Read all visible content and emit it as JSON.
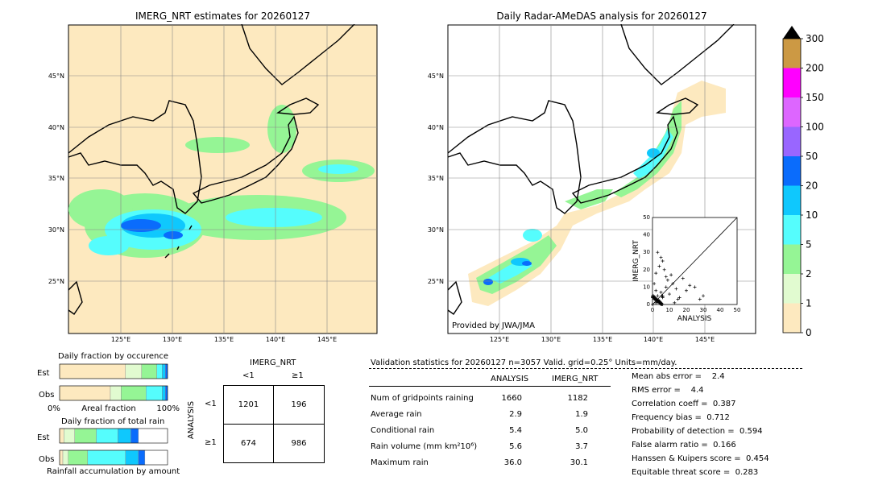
{
  "left_map": {
    "title": "IMERG_NRT estimates for 20260127",
    "lat_labels": [
      "45°N",
      "40°N",
      "35°N",
      "30°N",
      "25°N"
    ],
    "lon_labels": [
      "125°E",
      "130°E",
      "135°E",
      "140°E",
      "145°E"
    ]
  },
  "right_map": {
    "title": "Daily Radar-AMeDAS analysis for 20260127",
    "lat_labels": [
      "45°N",
      "40°N",
      "35°N",
      "30°N",
      "25°N"
    ],
    "lon_labels": [
      "125°E",
      "130°E",
      "135°E",
      "140°E",
      "145°E"
    ],
    "credit": "Provided by JWA/JMA"
  },
  "colorbar": {
    "labels": [
      "0",
      "1",
      "2",
      "5",
      "10",
      "20",
      "50",
      "100",
      "150",
      "200",
      "300"
    ],
    "colors": [
      "#fde9bf",
      "#e1fbd0",
      "#95f595",
      "#55fdfd",
      "#0fc8fd",
      "#0a6cfc",
      "#9966ff",
      "#dd66ff",
      "#ff00ff",
      "#cc9944",
      "#000000"
    ]
  },
  "scatter": {
    "xlabel": "ANALYSIS",
    "ylabel": "IMERG_NRT",
    "ticks": [
      "0",
      "10",
      "20",
      "30",
      "40",
      "50"
    ]
  },
  "occurrence": {
    "title": "Daily fraction by occurence",
    "rows": [
      "Est",
      "Obs"
    ],
    "axis_left": "0%",
    "axis_mid": "Areal fraction",
    "axis_right": "100%"
  },
  "total_rain": {
    "title": "Daily fraction of total rain",
    "rows": [
      "Est",
      "Obs"
    ],
    "caption": "Rainfall accumulation by amount"
  },
  "contingency": {
    "col_title": "IMERG_NRT",
    "col_labels": [
      "<1",
      "≥1"
    ],
    "row_title": "ANALYSIS",
    "row_labels": [
      "<1",
      "≥1"
    ],
    "cells": [
      [
        "1201",
        "196"
      ],
      [
        "674",
        "986"
      ]
    ]
  },
  "validation": {
    "header": "Validation statistics for 20260127  n=3057 Valid. grid=0.25° Units=mm/day.",
    "col_analysis": "ANALYSIS",
    "col_imerg": "IMERG_NRT",
    "rows": [
      {
        "label": "Num of gridpoints raining",
        "analysis": "1660",
        "imerg": "1182"
      },
      {
        "label": "Average rain",
        "analysis": "2.9",
        "imerg": "1.9"
      },
      {
        "label": "Conditional rain",
        "analysis": "5.4",
        "imerg": "5.0"
      },
      {
        "label": "Rain volume (mm km²10⁶)",
        "analysis": "5.6",
        "imerg": "3.7"
      },
      {
        "label": "Maximum rain",
        "analysis": "36.0",
        "imerg": "30.1"
      }
    ],
    "scores": [
      "Mean abs error =    2.4",
      "RMS error =    4.4",
      "Correlation coeff =  0.387",
      "Frequency bias =  0.712",
      "Probability of detection =  0.594",
      "False alarm ratio =  0.166",
      "Hanssen & Kuipers score =  0.454",
      "Equitable threat score =  0.283"
    ]
  },
  "chart_data": [
    {
      "type": "heatmap",
      "title": "IMERG_NRT estimates for 20260127",
      "x_ticks": [
        "125°E",
        "130°E",
        "135°E",
        "140°E",
        "145°E"
      ],
      "y_ticks": [
        "45°N",
        "40°N",
        "35°N",
        "30°N",
        "25°N"
      ],
      "xlim": [
        120,
        150
      ],
      "ylim": [
        20,
        50
      ]
    },
    {
      "type": "heatmap",
      "title": "Daily Radar-AMeDAS analysis for 20260127",
      "x_ticks": [
        "125°E",
        "130°E",
        "135°E",
        "140°E",
        "145°E"
      ],
      "y_ticks": [
        "45°N",
        "40°N",
        "35°N",
        "30°N",
        "25°N"
      ],
      "xlim": [
        120,
        150
      ],
      "ylim": [
        20,
        50
      ]
    },
    {
      "type": "scatter",
      "xlabel": "ANALYSIS",
      "ylabel": "IMERG_NRT",
      "xlim": [
        0,
        50
      ],
      "ylim": [
        0,
        50
      ],
      "x": [
        1,
        2,
        3,
        4,
        5,
        6,
        8,
        10,
        12,
        15,
        18,
        20,
        25,
        30,
        2,
        4,
        6,
        9,
        3,
        7,
        11,
        14,
        5,
        1,
        2,
        3,
        16,
        22,
        28,
        8,
        13
      ],
      "y": [
        3,
        1,
        5,
        2,
        7,
        4,
        10,
        6,
        12,
        3,
        15,
        8,
        10,
        5,
        18,
        22,
        25,
        14,
        30,
        20,
        17,
        9,
        27,
        12,
        8,
        2,
        4,
        11,
        3,
        16,
        1
      ]
    },
    {
      "type": "bar",
      "title": "Daily fraction by occurence",
      "categories": [
        "Est",
        "Obs"
      ],
      "series": [
        {
          "color": "#fde9bf",
          "values": [
            0.61,
            0.47
          ]
        },
        {
          "color": "#e1fbd0",
          "values": [
            0.15,
            0.1
          ]
        },
        {
          "color": "#95f595",
          "values": [
            0.14,
            0.23
          ]
        },
        {
          "color": "#55fdfd",
          "values": [
            0.05,
            0.15
          ]
        },
        {
          "color": "#0fc8fd",
          "values": [
            0.03,
            0.03
          ]
        },
        {
          "color": "#0a6cfc",
          "values": [
            0.02,
            0.02
          ]
        }
      ]
    },
    {
      "type": "bar",
      "title": "Daily fraction of total rain",
      "categories": [
        "Est",
        "Obs"
      ],
      "series": [
        {
          "color": "#fde9bf",
          "values": [
            0.04,
            0.03
          ]
        },
        {
          "color": "#e1fbd0",
          "values": [
            0.1,
            0.05
          ]
        },
        {
          "color": "#95f595",
          "values": [
            0.2,
            0.18
          ]
        },
        {
          "color": "#55fdfd",
          "values": [
            0.2,
            0.35
          ]
        },
        {
          "color": "#0fc8fd",
          "values": [
            0.12,
            0.12
          ]
        },
        {
          "color": "#0a6cfc",
          "values": [
            0.07,
            0.06
          ]
        }
      ]
    }
  ]
}
